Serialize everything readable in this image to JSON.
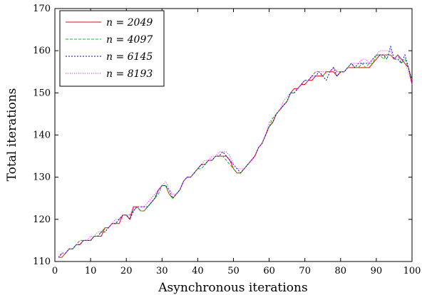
{
  "chart_data": {
    "type": "line",
    "title": "",
    "xlabel": "Asynchronous iterations",
    "ylabel": "Total iterations",
    "xlim": [
      0,
      100
    ],
    "ylim": [
      110,
      170
    ],
    "x_ticks": [
      "0",
      "10",
      "20",
      "30",
      "40",
      "50",
      "60",
      "70",
      "80",
      "90",
      "100"
    ],
    "y_ticks": [
      "110",
      "120",
      "130",
      "140",
      "150",
      "160",
      "170"
    ],
    "legend_position": "top-left",
    "grid": false,
    "x": [
      1,
      2,
      3,
      4,
      5,
      6,
      7,
      8,
      9,
      10,
      11,
      12,
      13,
      14,
      15,
      16,
      17,
      18,
      19,
      20,
      21,
      22,
      23,
      24,
      25,
      26,
      27,
      28,
      29,
      30,
      31,
      32,
      33,
      34,
      35,
      36,
      37,
      38,
      39,
      40,
      41,
      42,
      43,
      44,
      45,
      46,
      47,
      48,
      49,
      50,
      51,
      52,
      53,
      54,
      55,
      56,
      57,
      58,
      59,
      60,
      61,
      62,
      63,
      64,
      65,
      66,
      67,
      68,
      69,
      70,
      71,
      72,
      73,
      74,
      75,
      76,
      77,
      78,
      79,
      80,
      81,
      82,
      83,
      84,
      85,
      86,
      87,
      88,
      89,
      90,
      91,
      92,
      93,
      94,
      95,
      96,
      97,
      98,
      99,
      100
    ],
    "series": [
      {
        "name": "n = 2049",
        "color": "#ff0000",
        "dash": "",
        "values": [
          111,
          111,
          112,
          113,
          113,
          114,
          114,
          115,
          115,
          115,
          116,
          116,
          116,
          118,
          118,
          119,
          119,
          119,
          121,
          121,
          120,
          123,
          123,
          122,
          122,
          123,
          124,
          125,
          127,
          128,
          128,
          126,
          125,
          126,
          127,
          129,
          130,
          130,
          131,
          132,
          133,
          133,
          134,
          134,
          135,
          135,
          135,
          135,
          134,
          132,
          131,
          131,
          132,
          133,
          134,
          135,
          137,
          138,
          140,
          142,
          143,
          145,
          146,
          147,
          148,
          150,
          151,
          151,
          152,
          152,
          153,
          153,
          154,
          154,
          154,
          155,
          155,
          155,
          154,
          155,
          155,
          156,
          156,
          156,
          156,
          156,
          156,
          156,
          157,
          158,
          159,
          159,
          159,
          159,
          158,
          159,
          158,
          157,
          156,
          152
        ]
      },
      {
        "name": "n = 4097",
        "color": "#00cc00",
        "dash": "4,2",
        "values": [
          111,
          111,
          112,
          113,
          113,
          114,
          115,
          115,
          115,
          115,
          116,
          116,
          117,
          118,
          118,
          119,
          119,
          120,
          121,
          121,
          121,
          122,
          123,
          122,
          122,
          123,
          124,
          125,
          126,
          128,
          128,
          126,
          125,
          126,
          127,
          129,
          130,
          130,
          131,
          132,
          132,
          133,
          134,
          134,
          135,
          135,
          135,
          134,
          133,
          132,
          131,
          131,
          132,
          133,
          134,
          135,
          137,
          138,
          140,
          142,
          144,
          145,
          146,
          147,
          148,
          150,
          150,
          151,
          152,
          153,
          153,
          154,
          155,
          155,
          154,
          155,
          155,
          156,
          155,
          155,
          155,
          156,
          157,
          156,
          156,
          157,
          156,
          157,
          157,
          159,
          159,
          158,
          159,
          159,
          158,
          159,
          157,
          158,
          156,
          153
        ]
      },
      {
        "name": "n = 6145",
        "color": "#0000dd",
        "dash": "2,2",
        "values": [
          111,
          112,
          112,
          113,
          113,
          114,
          114,
          115,
          115,
          115,
          116,
          116,
          117,
          117,
          118,
          119,
          119,
          120,
          121,
          121,
          120,
          122,
          123,
          123,
          123,
          123,
          124,
          125,
          127,
          128,
          128,
          127,
          125,
          126,
          127,
          129,
          130,
          130,
          131,
          132,
          133,
          133,
          134,
          134,
          135,
          135,
          136,
          135,
          134,
          133,
          132,
          131,
          132,
          133,
          134,
          135,
          137,
          138,
          140,
          142,
          143,
          145,
          146,
          147,
          148,
          150,
          150,
          151,
          152,
          153,
          153,
          154,
          154,
          155,
          154,
          153,
          155,
          156,
          154,
          155,
          155,
          156,
          157,
          156,
          157,
          157,
          157,
          157,
          158,
          159,
          159,
          159,
          158,
          161,
          158,
          158,
          157,
          159,
          156,
          153
        ]
      },
      {
        "name": "n = 8193",
        "color": "#ff00ff",
        "dash": "1,2",
        "values": [
          111,
          112,
          112,
          113,
          113,
          114,
          115,
          115,
          115,
          116,
          116,
          117,
          117,
          118,
          118,
          119,
          120,
          120,
          121,
          121,
          121,
          123,
          123,
          123,
          123,
          124,
          125,
          126,
          127,
          128,
          129,
          127,
          126,
          126,
          127,
          129,
          130,
          130,
          131,
          132,
          133,
          134,
          134,
          135,
          135,
          136,
          136,
          136,
          135,
          133,
          132,
          132,
          132,
          133,
          134,
          135,
          137,
          138,
          140,
          143,
          144,
          145,
          146,
          148,
          149,
          150,
          151,
          151,
          152,
          153,
          153,
          154,
          155,
          155,
          155,
          155,
          155,
          156,
          155,
          155,
          155,
          156,
          157,
          157,
          157,
          158,
          158,
          157,
          158,
          159,
          160,
          160,
          160,
          160,
          158,
          159,
          158,
          157,
          155,
          152
        ]
      }
    ]
  }
}
